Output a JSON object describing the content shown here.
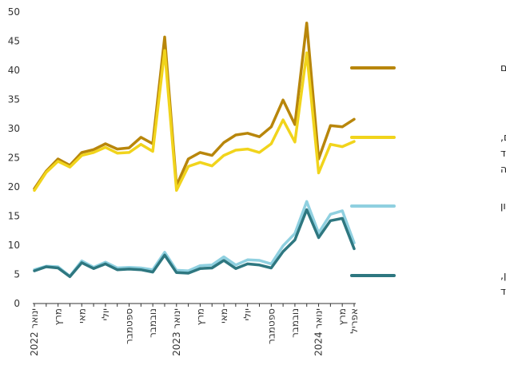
{
  "chart_data": {
    "type": "line",
    "title": "",
    "xlabel": "",
    "ylabel": "",
    "ylim": [
      0,
      50
    ],
    "y_ticks": [
      0,
      5,
      10,
      15,
      20,
      25,
      30,
      35,
      40,
      45,
      50
    ],
    "grid": false,
    "legend_position": "right",
    "x_count": 28,
    "x_tick_labels": [
      {
        "index": 0,
        "label": "ינואר 2022"
      },
      {
        "index": 2,
        "label": "מרץ"
      },
      {
        "index": 4,
        "label": "מאי"
      },
      {
        "index": 6,
        "label": "יולי"
      },
      {
        "index": 8,
        "label": "ספטמבר"
      },
      {
        "index": 10,
        "label": "נובמבר"
      },
      {
        "index": 12,
        "label": "ינואר 2023"
      },
      {
        "index": 14,
        "label": "מרץ"
      },
      {
        "index": 16,
        "label": "מאי"
      },
      {
        "index": 18,
        "label": "יולי"
      },
      {
        "index": 20,
        "label": "ספטמבר"
      },
      {
        "index": 22,
        "label": "נובמבר"
      },
      {
        "index": 24,
        "label": "ינואר 2024"
      },
      {
        "index": 26,
        "label": "מרץ"
      },
      {
        "index": 27,
        "label": "אפריל"
      }
    ],
    "series": [
      {
        "name": "משרדים אזרחיים",
        "color": "#b8860b",
        "values": [
          19.7,
          22.7,
          24.8,
          23.7,
          25.9,
          26.4,
          27.4,
          26.5,
          26.7,
          28.5,
          27.4,
          45.7,
          20.2,
          24.8,
          25.9,
          25.4,
          27.6,
          28.9,
          29.2,
          28.6,
          30.3,
          34.9,
          30.7,
          48.1,
          24.8,
          30.5,
          30.3,
          31.6
        ]
      },
      {
        "name": "משרדים אזרחיים, מתוקנן לעלייה במדד ולגידול באוכלוסייה",
        "color": "#f1d41c",
        "values": [
          19.4,
          22.5,
          24.4,
          23.4,
          25.4,
          25.9,
          26.8,
          25.8,
          25.9,
          27.3,
          26.1,
          43.4,
          19.4,
          23.5,
          24.2,
          23.6,
          25.4,
          26.3,
          26.5,
          25.9,
          27.4,
          31.5,
          27.7,
          43.0,
          22.4,
          27.3,
          26.9,
          27.8
        ]
      },
      {
        "name": "מערכת הביטחון",
        "color": "#8fd0e0",
        "values": [
          5.8,
          6.4,
          6.3,
          4.7,
          7.3,
          6.2,
          7.1,
          6.1,
          6.2,
          6.1,
          5.8,
          8.8,
          5.7,
          5.6,
          6.5,
          6.6,
          8.0,
          6.6,
          7.5,
          7.4,
          6.8,
          9.9,
          12.0,
          17.5,
          12.1,
          15.3,
          15.9,
          10.4
        ]
      },
      {
        "name": "מערכת הביטחון, מתוקנן לעלייה במדד",
        "color": "#2e7780",
        "values": [
          5.6,
          6.3,
          6.1,
          4.6,
          7.0,
          6.0,
          6.8,
          5.8,
          5.9,
          5.8,
          5.4,
          8.3,
          5.3,
          5.2,
          6.0,
          6.1,
          7.4,
          6.0,
          6.8,
          6.6,
          6.1,
          8.9,
          10.9,
          16.1,
          11.3,
          14.2,
          14.6,
          9.4
        ]
      }
    ],
    "legend": [
      {
        "series": 0,
        "lines": [
          "משרדים אזרחיים"
        ]
      },
      {
        "series": 1,
        "lines": [
          "משרדים אזרחיים,",
          "מתוקנן לעלייה במדד",
          "ולגידול באוכלוסייה"
        ]
      },
      {
        "series": 2,
        "lines": [
          "מערכת הביטחון"
        ]
      },
      {
        "series": 3,
        "lines": [
          "מערכת הביטחון,",
          "מתוקנן לעלייה במדד"
        ]
      }
    ]
  }
}
